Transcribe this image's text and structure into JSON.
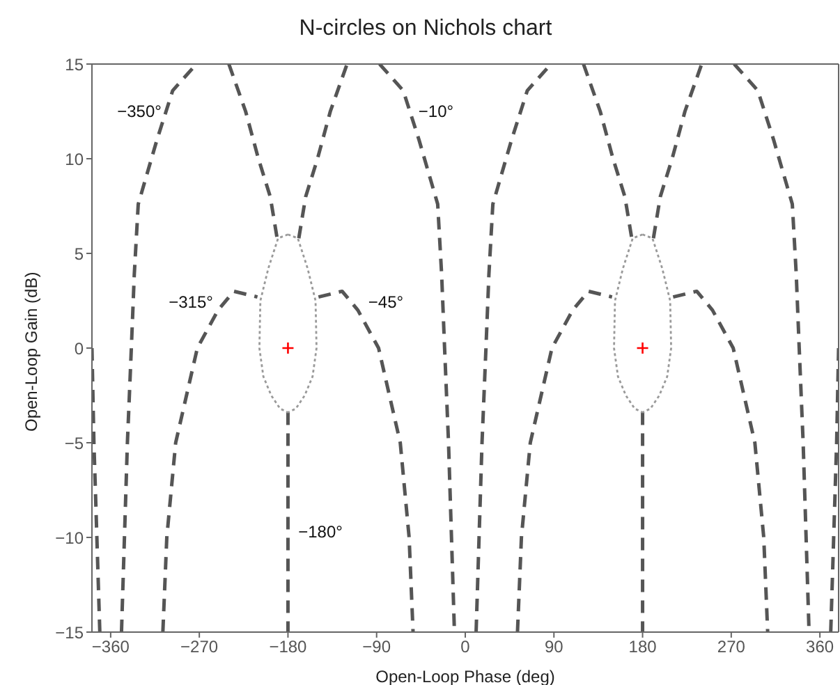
{
  "chart_data": {
    "type": "line",
    "title": "N-circles on Nichols chart",
    "xlabel": "Open-Loop Phase (deg)",
    "ylabel": "Open-Loop Gain (dB)",
    "xlim": [
      -379,
      379
    ],
    "ylim": [
      -15,
      15
    ],
    "xticks": [
      -360,
      -270,
      -180,
      -90,
      0,
      90,
      180,
      270,
      360
    ],
    "yticks": [
      -15,
      -10,
      -5,
      0,
      5,
      10,
      15
    ],
    "series": [
      {
        "color": "#555555",
        "line_style": "dashed",
        "x": [
          -349,
          -346,
          -343,
          -339,
          -336,
          -332,
          -313,
          -297,
          -273,
          -256,
          -240,
          -223,
          -210,
          -198,
          -191
        ],
        "values": [
          -15,
          -10,
          -5,
          0,
          3.9,
          7.6,
          11,
          13.6,
          15,
          null,
          15,
          12.5,
          10,
          8,
          5.8
        ]
      },
      {
        "color": "#555555",
        "line_style": "dashed",
        "x": [
          -169,
          -162,
          -150,
          -137,
          -120,
          -104,
          -87,
          -63,
          -47,
          -28,
          -24,
          -21,
          -17,
          -14,
          -11
        ],
        "values": [
          5.8,
          8,
          10,
          12.5,
          15,
          null,
          15,
          13.6,
          11,
          7.6,
          3.9,
          0,
          -5,
          -10,
          -15
        ]
      },
      {
        "color": "#555555",
        "line_style": "dashed",
        "x": [
          -307,
          -303,
          -294,
          -272,
          -251,
          -235,
          -211
        ],
        "values": [
          -15,
          -10,
          -5,
          0,
          2,
          3,
          2.7
        ]
      },
      {
        "color": "#555555",
        "line_style": "dashed",
        "x": [
          -149,
          -125,
          -109,
          -88,
          -66,
          -57,
          -53
        ],
        "values": [
          2.7,
          3,
          2,
          0,
          -5,
          -10,
          -15
        ]
      },
      {
        "color": "#555555",
        "line_style": "dashed",
        "x": [
          -180,
          -180
        ],
        "values": [
          -3.4,
          -15
        ]
      },
      {
        "color": "#555555",
        "line_style": "dashed",
        "x": [
          11,
          14,
          17,
          21,
          24,
          28,
          47,
          63,
          87,
          104,
          120,
          137,
          150,
          162,
          169
        ],
        "values": [
          -15,
          -10,
          -5,
          0,
          3.9,
          7.6,
          11,
          13.6,
          15,
          null,
          15,
          12.5,
          10,
          8,
          5.8
        ]
      },
      {
        "color": "#555555",
        "line_style": "dashed",
        "x": [
          191,
          198,
          210,
          223,
          240,
          256,
          273,
          297,
          313,
          332,
          336,
          339,
          343,
          346,
          349
        ],
        "values": [
          5.8,
          8,
          10,
          12.5,
          15,
          null,
          15,
          13.6,
          11,
          7.6,
          3.9,
          0,
          -5,
          -10,
          -15
        ]
      },
      {
        "color": "#555555",
        "line_style": "dashed",
        "x": [
          53,
          57,
          66,
          88,
          109,
          125,
          149
        ],
        "values": [
          -15,
          -10,
          -5,
          0,
          2,
          3,
          2.7
        ]
      },
      {
        "color": "#555555",
        "line_style": "dashed",
        "x": [
          211,
          235,
          251,
          272,
          294,
          303,
          307
        ],
        "values": [
          2.7,
          3,
          2,
          0,
          -5,
          -10,
          -15
        ]
      },
      {
        "color": "#555555",
        "line_style": "dashed",
        "x": [
          180,
          180
        ],
        "values": [
          -3.4,
          -15
        ]
      },
      {
        "color": "#555555",
        "line_style": "dashed",
        "x": [
          -379,
          -377,
          -374,
          -371
        ],
        "values": [
          0,
          -5,
          -10,
          -15
        ]
      },
      {
        "color": "#555555",
        "line_style": "dashed",
        "x": [
          371,
          374,
          377,
          379
        ],
        "values": [
          -15,
          -10,
          -5,
          0
        ]
      },
      {
        "color": "#9a9a9a",
        "line_style": "dotted",
        "x": [
          -180,
          -190,
          -200,
          -208,
          -209,
          -205,
          -197,
          -188,
          -180
        ],
        "values": [
          6,
          5.8,
          4.2,
          2.5,
          0,
          -1.5,
          -2.5,
          -3.2,
          -3.4
        ]
      },
      {
        "color": "#9a9a9a",
        "line_style": "dotted",
        "x": [
          -180,
          -170,
          -160,
          -152,
          -151,
          -155,
          -163,
          -172,
          -180
        ],
        "values": [
          6,
          5.8,
          4.2,
          2.5,
          0,
          -1.5,
          -2.5,
          -3.2,
          -3.4
        ]
      },
      {
        "color": "#9a9a9a",
        "line_style": "dotted",
        "x": [
          180,
          170,
          160,
          152,
          151,
          155,
          163,
          172,
          180
        ],
        "values": [
          6,
          5.8,
          4.2,
          2.5,
          0,
          -1.5,
          -2.5,
          -3.2,
          -3.4
        ]
      },
      {
        "color": "#9a9a9a",
        "line_style": "dotted",
        "x": [
          180,
          190,
          200,
          208,
          209,
          205,
          197,
          188,
          180
        ],
        "values": [
          6,
          5.8,
          4.2,
          2.5,
          0,
          -1.5,
          -2.5,
          -3.2,
          -3.4
        ]
      },
      {
        "type": "scatter",
        "color": "#ff0000",
        "marker": "cross",
        "x": [
          -180,
          180
        ],
        "values": [
          0,
          0
        ]
      }
    ],
    "annotations": [
      "−350°",
      "−10°",
      "−315°",
      "−45°",
      "−180°"
    ]
  }
}
